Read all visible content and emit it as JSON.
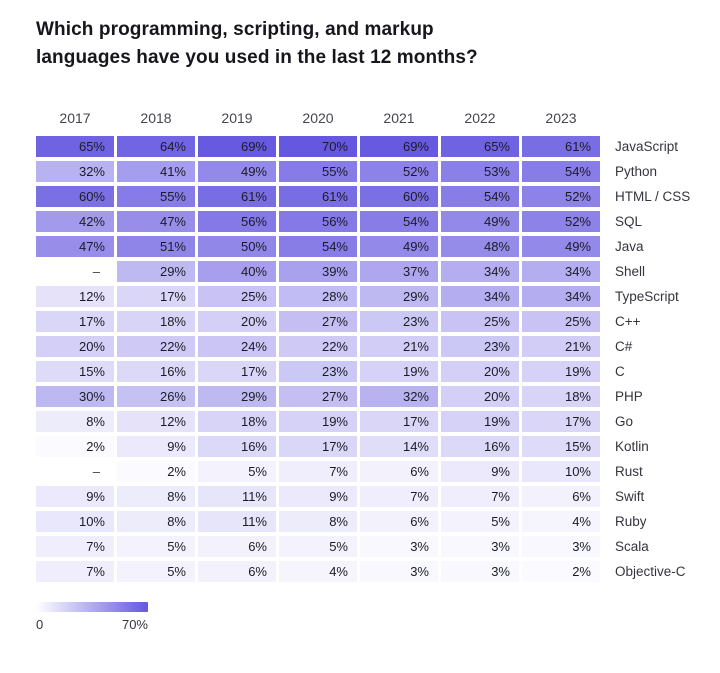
{
  "chart_data": {
    "type": "heatmap",
    "title": "Which programming, scripting, and markup languages have you used in the last 12 months?",
    "columns": [
      "2017",
      "2018",
      "2019",
      "2020",
      "2021",
      "2022",
      "2023"
    ],
    "rows": [
      {
        "label": "JavaScript",
        "values": [
          65,
          64,
          69,
          70,
          69,
          65,
          61
        ]
      },
      {
        "label": "Python",
        "values": [
          32,
          41,
          49,
          55,
          52,
          53,
          54
        ]
      },
      {
        "label": "HTML / CSS",
        "values": [
          60,
          55,
          61,
          61,
          60,
          54,
          52
        ]
      },
      {
        "label": "SQL",
        "values": [
          42,
          47,
          56,
          56,
          54,
          49,
          52
        ]
      },
      {
        "label": "Java",
        "values": [
          47,
          51,
          50,
          54,
          49,
          48,
          49
        ]
      },
      {
        "label": "Shell",
        "values": [
          null,
          29,
          40,
          39,
          37,
          34,
          34
        ]
      },
      {
        "label": "TypeScript",
        "values": [
          12,
          17,
          25,
          28,
          29,
          34,
          34
        ]
      },
      {
        "label": "C++",
        "values": [
          17,
          18,
          20,
          27,
          23,
          25,
          25
        ]
      },
      {
        "label": "C#",
        "values": [
          20,
          22,
          24,
          22,
          21,
          23,
          21
        ]
      },
      {
        "label": "C",
        "values": [
          15,
          16,
          17,
          23,
          19,
          20,
          19
        ]
      },
      {
        "label": "PHP",
        "values": [
          30,
          26,
          29,
          27,
          32,
          20,
          18
        ]
      },
      {
        "label": "Go",
        "values": [
          8,
          12,
          18,
          19,
          17,
          19,
          17
        ]
      },
      {
        "label": "Kotlin",
        "values": [
          2,
          9,
          16,
          17,
          14,
          16,
          15
        ]
      },
      {
        "label": "Rust",
        "values": [
          null,
          2,
          5,
          7,
          6,
          9,
          10
        ]
      },
      {
        "label": "Swift",
        "values": [
          9,
          8,
          11,
          9,
          7,
          7,
          6
        ]
      },
      {
        "label": "Ruby",
        "values": [
          10,
          8,
          11,
          8,
          6,
          5,
          4
        ]
      },
      {
        "label": "Scala",
        "values": [
          7,
          5,
          6,
          5,
          3,
          3,
          3
        ]
      },
      {
        "label": "Objective-C",
        "values": [
          7,
          5,
          6,
          4,
          3,
          3,
          2
        ]
      }
    ],
    "value_suffix": "%",
    "null_display": "–",
    "color_scale": {
      "min_value": 0,
      "max_value": 70,
      "min_color": "#ffffff",
      "max_color": "#6557e0"
    },
    "legend": {
      "min_label": "0",
      "max_label": "70%"
    }
  }
}
